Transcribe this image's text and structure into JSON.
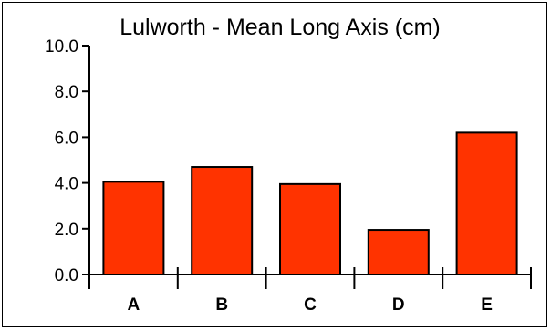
{
  "chart_data": {
    "type": "bar",
    "title": "Lulworth - Mean Long Axis (cm)",
    "xlabel": "",
    "ylabel": "",
    "categories": [
      "A",
      "B",
      "C",
      "D",
      "E"
    ],
    "values": [
      4.05,
      4.7,
      3.95,
      1.95,
      6.2
    ],
    "ylim": [
      0,
      10
    ],
    "yticks": [
      "0.0",
      "2.0",
      "4.0",
      "6.0",
      "8.0",
      "10.0"
    ],
    "grid": false,
    "legend": "none",
    "bar_color": "#ff3300",
    "edge_color": "#000000"
  }
}
